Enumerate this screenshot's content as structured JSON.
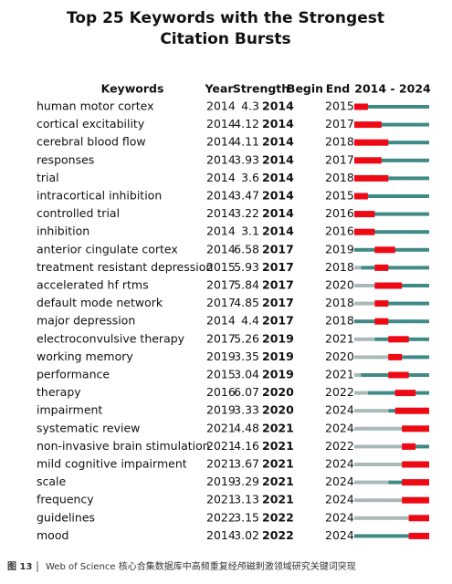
{
  "title_lines": [
    "Top 25 Keywords with the Strongest",
    "Citation Bursts"
  ],
  "table": {
    "columns": [
      "Keywords",
      "Year",
      "Strength",
      "Begin",
      "End",
      "2014 - 2024"
    ],
    "timeline_lim": [
      2014,
      2024
    ],
    "colors": {
      "before": "#a9b9b8",
      "after": "#3f8a86",
      "burst": "#ee0a14"
    },
    "rows": [
      {
        "keyword": "human motor cortex",
        "year": 2014,
        "strength": 4.3,
        "begin": 2014,
        "end": 2015
      },
      {
        "keyword": "cortical excitability",
        "year": 2014,
        "strength": 4.12,
        "begin": 2014,
        "end": 2017
      },
      {
        "keyword": "cerebral blood flow",
        "year": 2014,
        "strength": 4.11,
        "begin": 2014,
        "end": 2018
      },
      {
        "keyword": "responses",
        "year": 2014,
        "strength": 3.93,
        "begin": 2014,
        "end": 2017
      },
      {
        "keyword": "trial",
        "year": 2014,
        "strength": 3.6,
        "begin": 2014,
        "end": 2018
      },
      {
        "keyword": "intracortical inhibition",
        "year": 2014,
        "strength": 3.47,
        "begin": 2014,
        "end": 2015
      },
      {
        "keyword": "controlled trial",
        "year": 2014,
        "strength": 3.22,
        "begin": 2014,
        "end": 2016
      },
      {
        "keyword": "inhibition",
        "year": 2014,
        "strength": 3.1,
        "begin": 2014,
        "end": 2016
      },
      {
        "keyword": "anterior cingulate cortex",
        "year": 2014,
        "strength": 6.58,
        "begin": 2017,
        "end": 2019
      },
      {
        "keyword": "treatment resistant depression",
        "year": 2015,
        "strength": 5.93,
        "begin": 2017,
        "end": 2018
      },
      {
        "keyword": "accelerated hf rtms",
        "year": 2017,
        "strength": 5.84,
        "begin": 2017,
        "end": 2020
      },
      {
        "keyword": "default mode network",
        "year": 2017,
        "strength": 4.85,
        "begin": 2017,
        "end": 2018
      },
      {
        "keyword": "major depression",
        "year": 2014,
        "strength": 4.4,
        "begin": 2017,
        "end": 2018
      },
      {
        "keyword": "electroconvulsive therapy",
        "year": 2017,
        "strength": 5.26,
        "begin": 2019,
        "end": 2021
      },
      {
        "keyword": "working memory",
        "year": 2019,
        "strength": 3.35,
        "begin": 2019,
        "end": 2020
      },
      {
        "keyword": "performance",
        "year": 2015,
        "strength": 3.04,
        "begin": 2019,
        "end": 2021
      },
      {
        "keyword": "therapy",
        "year": 2016,
        "strength": 6.07,
        "begin": 2020,
        "end": 2022
      },
      {
        "keyword": "impairment",
        "year": 2019,
        "strength": 3.33,
        "begin": 2020,
        "end": 2024
      },
      {
        "keyword": "systematic review",
        "year": 2021,
        "strength": 4.48,
        "begin": 2021,
        "end": 2024
      },
      {
        "keyword": "non-invasive brain stimulation",
        "year": 2021,
        "strength": 4.16,
        "begin": 2021,
        "end": 2022
      },
      {
        "keyword": "mild cognitive impairment",
        "year": 2021,
        "strength": 3.67,
        "begin": 2021,
        "end": 2024
      },
      {
        "keyword": "scale",
        "year": 2019,
        "strength": 3.29,
        "begin": 2021,
        "end": 2024
      },
      {
        "keyword": "frequency",
        "year": 2021,
        "strength": 3.13,
        "begin": 2021,
        "end": 2024
      },
      {
        "keyword": "guidelines",
        "year": 2022,
        "strength": 3.15,
        "begin": 2022,
        "end": 2024
      },
      {
        "keyword": "mood",
        "year": 2014,
        "strength": 3.02,
        "begin": 2022,
        "end": 2024
      }
    ]
  },
  "caption": {
    "figure": "图 13",
    "text": "Web of Science 核心合集数据库中高频重复经颅磁刺激领域研究关键词突现"
  }
}
